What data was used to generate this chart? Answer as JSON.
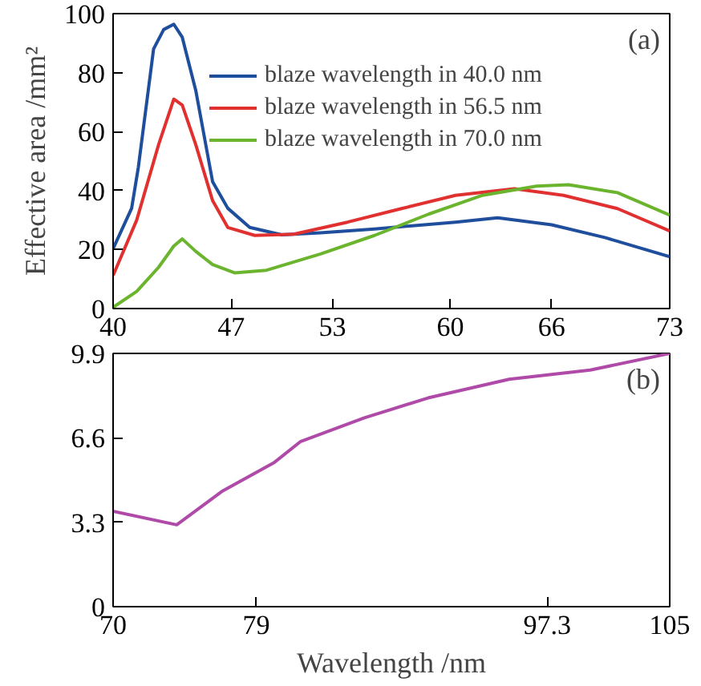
{
  "chart_data": [
    {
      "type": "line",
      "ylabel": "Effective area /mm²",
      "annotations": [
        "(a)"
      ],
      "xlim": [
        40,
        73
      ],
      "ylim": [
        0,
        100
      ],
      "xticks": [
        40,
        47,
        53,
        60,
        66,
        73
      ],
      "yticks": [
        0,
        20,
        40,
        60,
        80,
        100
      ],
      "grid": false,
      "legend": "top right",
      "series": [
        {
          "name": "blaze wavelength in 40.0 nm",
          "color": "#1f4e9c",
          "x": [
            40,
            41.1,
            41.5,
            42.4,
            43,
            43.6,
            44.1,
            44.9,
            45.9,
            46.8,
            48.1,
            50,
            52.3,
            55.5,
            60.3,
            62.8,
            66,
            69.2,
            73
          ],
          "values": [
            20.3,
            34,
            48,
            88,
            94.6,
            96.4,
            92,
            74,
            43,
            34,
            27.5,
            25,
            25.7,
            27,
            29.3,
            30.8,
            28.4,
            24,
            17.6
          ]
        },
        {
          "name": "blaze wavelength in 56.5 nm",
          "color": "#e03030",
          "x": [
            40,
            41.4,
            42.7,
            43.6,
            44.1,
            44.9,
            45.9,
            46.8,
            48.4,
            50.7,
            53.9,
            57.1,
            60.3,
            63.8,
            66.7,
            69.9,
            73
          ],
          "values": [
            11.2,
            30,
            55.6,
            71,
            69,
            55.6,
            36.6,
            27.5,
            24.8,
            25.2,
            29.3,
            33.9,
            38.4,
            40.6,
            38.4,
            33.9,
            26.3
          ]
        },
        {
          "name": "blaze wavelength in 70.0 nm",
          "color": "#6ab42e",
          "x": [
            40,
            41.4,
            42.7,
            43.6,
            44.1,
            44.9,
            45.9,
            47.2,
            49.1,
            52.3,
            55.5,
            58.7,
            61.9,
            65.1,
            67,
            69.9,
            73
          ],
          "values": [
            0.4,
            5.8,
            14,
            21.2,
            23.6,
            19.4,
            14.9,
            12.1,
            13,
            18.5,
            24.8,
            32,
            38.4,
            41.5,
            42,
            39.3,
            31.7
          ]
        }
      ]
    },
    {
      "type": "line",
      "xlabel": "Wavelength /nm",
      "annotations": [
        "(b)"
      ],
      "xlim": [
        70,
        105
      ],
      "ylim": [
        0,
        9.9
      ],
      "xticks": [
        70,
        79,
        97.3,
        105
      ],
      "yticks": [
        0,
        3.3,
        6.6,
        9.9
      ],
      "grid": false,
      "series": [
        {
          "color": "#b04aa8",
          "x": [
            70,
            74,
            76.9,
            80.1,
            81.8,
            85.8,
            89.8,
            94.9,
            100,
            105
          ],
          "values": [
            3.73,
            3.2,
            4.53,
            5.62,
            6.46,
            7.38,
            8.16,
            8.89,
            9.25,
            9.9
          ]
        }
      ]
    }
  ]
}
